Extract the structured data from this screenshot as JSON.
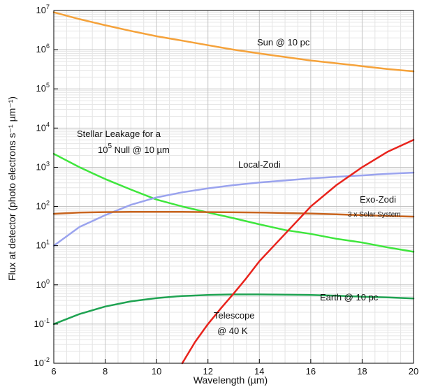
{
  "chart_data": {
    "type": "line",
    "x_label": "Wavelength (µm)",
    "y_label": "Flux at detector (photo electrons s⁻¹ µm⁻¹)",
    "xlim": [
      6,
      20
    ],
    "ylim": [
      0.01,
      10000000
    ],
    "y_scale": "log",
    "grid": true,
    "x_ticks": [
      "6",
      "8",
      "10",
      "12",
      "14",
      "16",
      "18",
      "20"
    ],
    "y_ticks": [
      {
        "base": "10",
        "exp": "-2"
      },
      {
        "base": "10",
        "exp": "-1"
      },
      {
        "base": "10",
        "exp": "0"
      },
      {
        "base": "10",
        "exp": "1"
      },
      {
        "base": "10",
        "exp": "2"
      },
      {
        "base": "10",
        "exp": "3"
      },
      {
        "base": "10",
        "exp": "4"
      },
      {
        "base": "10",
        "exp": "5"
      },
      {
        "base": "10",
        "exp": "6"
      },
      {
        "base": "10",
        "exp": "7"
      }
    ],
    "series": [
      {
        "key": "sun",
        "color": "#f5a23a",
        "x": [
          6,
          7,
          8,
          9,
          10,
          11,
          12,
          13,
          14,
          15,
          16,
          17,
          18,
          19,
          20
        ],
        "y": [
          9000000,
          6000000,
          4200000,
          3000000,
          2200000,
          1700000,
          1300000,
          1000000,
          800000,
          650000,
          530000,
          450000,
          380000,
          320000,
          280000
        ]
      },
      {
        "key": "stellar_leakage",
        "color": "#3ee63c",
        "x": [
          6,
          7,
          8,
          9,
          10,
          11,
          12,
          13,
          14,
          15,
          16,
          17,
          18,
          19,
          20
        ],
        "y": [
          2200,
          1000,
          500,
          270,
          150,
          100,
          70,
          50,
          35,
          25,
          20,
          15,
          12,
          9,
          7
        ]
      },
      {
        "key": "local_zodi",
        "color": "#9aa3ee",
        "x": [
          6,
          7,
          8,
          9,
          10,
          11,
          12,
          13,
          14,
          15,
          16,
          17,
          18,
          19,
          20
        ],
        "y": [
          10,
          30,
          60,
          110,
          170,
          230,
          290,
          350,
          410,
          460,
          520,
          570,
          620,
          680,
          730
        ]
      },
      {
        "key": "exo_zodi",
        "color": "#c8641e",
        "x": [
          6,
          7,
          8,
          9,
          10,
          11,
          12,
          13,
          14,
          15,
          16,
          17,
          18,
          19,
          20
        ],
        "y": [
          65,
          70,
          72,
          73,
          73,
          73,
          72,
          71,
          70,
          68,
          66,
          63,
          60,
          57,
          55
        ]
      },
      {
        "key": "earth",
        "color": "#1fa352",
        "x": [
          6,
          7,
          8,
          9,
          10,
          11,
          12,
          13,
          14,
          15,
          16,
          17,
          18,
          19,
          20
        ],
        "y": [
          0.1,
          0.18,
          0.28,
          0.38,
          0.46,
          0.52,
          0.55,
          0.57,
          0.57,
          0.56,
          0.55,
          0.53,
          0.5,
          0.48,
          0.45
        ]
      },
      {
        "key": "telescope",
        "color": "#e8231c",
        "x": [
          11,
          11.5,
          12,
          12.5,
          13,
          13.5,
          14,
          15,
          16,
          17,
          18,
          19,
          20
        ],
        "y": [
          0.01,
          0.035,
          0.1,
          0.25,
          0.6,
          1.5,
          4,
          20,
          100,
          350,
          1000,
          2500,
          5000
        ]
      }
    ],
    "annotations": {
      "sun": "Sun @ 10 pc",
      "stellar_line1": "Stellar Leakage for a",
      "stellar_base": "10",
      "stellar_exp": "5",
      "stellar_rest": " Null @ 10 µm",
      "local_zodi": "Local-Zodi",
      "exo_zodi": "Exo-Zodi",
      "exo_zodi_sub": "3 x Solar System",
      "earth": "Earth @ 10 pc",
      "telescope_line1": "Telescope",
      "telescope_line2": "@ 40 K"
    }
  }
}
